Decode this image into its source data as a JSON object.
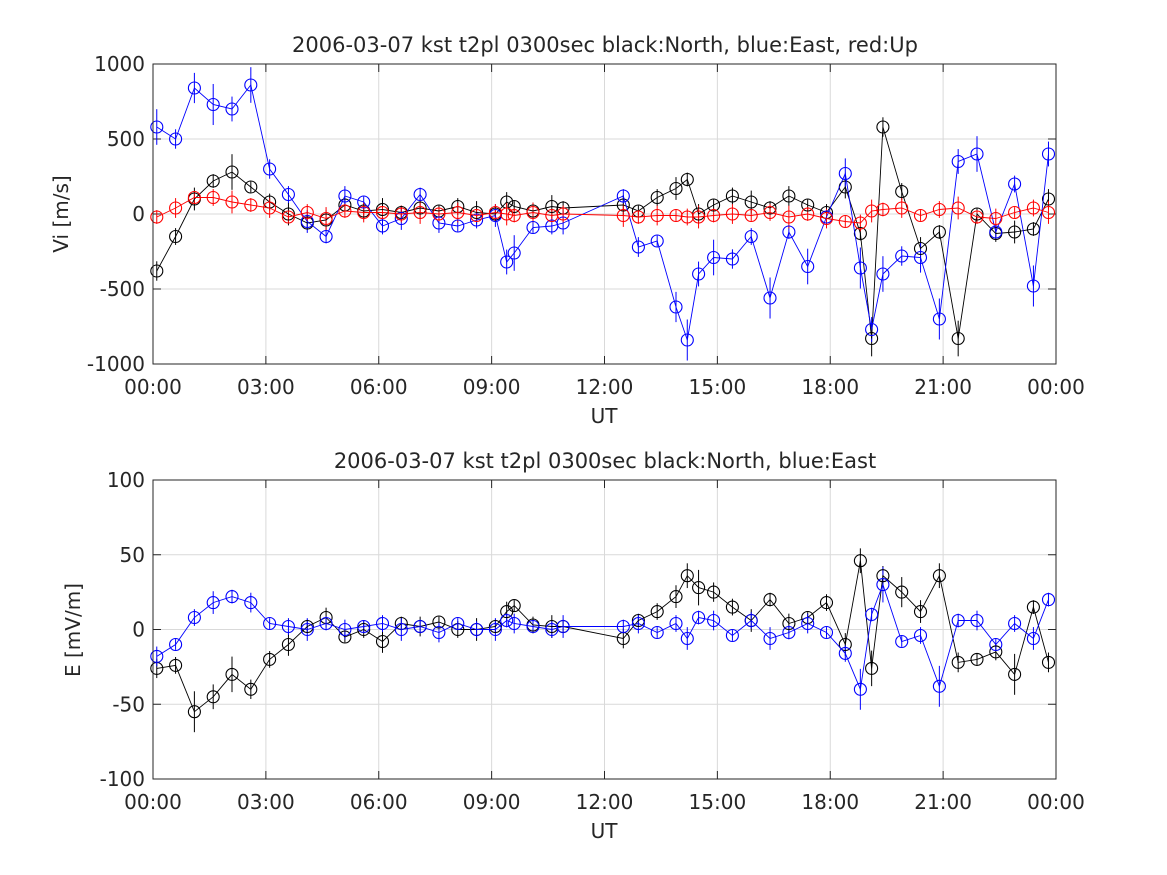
{
  "chart_data": [
    {
      "type": "scatter",
      "title": "2006-03-07 kst t2pl 0300sec black:North, blue:East, red:Up",
      "xlabel": "UT",
      "ylabel": "Vi [m/s]",
      "xlim": [
        0,
        24
      ],
      "ylim": [
        -1000,
        1000
      ],
      "grid": true,
      "xticks": [
        "00:00",
        "03:00",
        "06:00",
        "09:00",
        "12:00",
        "15:00",
        "18:00",
        "21:00",
        "00:00"
      ],
      "yticks": [
        "-1000",
        "-500",
        "0",
        "500",
        "1000"
      ],
      "x_unit": "hours UT",
      "x": [
        0.1,
        0.6,
        1.1,
        1.6,
        2.1,
        2.6,
        3.1,
        3.6,
        4.1,
        4.6,
        5.1,
        5.6,
        6.1,
        6.6,
        7.1,
        7.6,
        8.1,
        8.6,
        9.1,
        9.4,
        9.6,
        10.1,
        10.6,
        10.9,
        12.5,
        12.9,
        13.4,
        13.9,
        14.2,
        14.5,
        14.9,
        15.4,
        15.9,
        16.4,
        16.9,
        17.4,
        17.9,
        18.4,
        18.8,
        19.1,
        19.4,
        19.9,
        20.4,
        20.9,
        21.4,
        21.9,
        22.4,
        22.9,
        23.4,
        23.8
      ],
      "series": [
        {
          "name": "North",
          "color": "#000000",
          "values": [
            -380,
            -150,
            100,
            220,
            280,
            180,
            80,
            0,
            -60,
            -40,
            60,
            20,
            30,
            10,
            40,
            20,
            50,
            10,
            0,
            80,
            50,
            20,
            50,
            40,
            60,
            20,
            110,
            170,
            230,
            0,
            60,
            120,
            80,
            40,
            120,
            60,
            10,
            180,
            -130,
            -830,
            580,
            150,
            -230,
            -120,
            -830,
            0,
            -130,
            -120,
            -100,
            100
          ]
        },
        {
          "name": "East",
          "color": "#0000ff",
          "values": [
            580,
            500,
            840,
            730,
            700,
            860,
            300,
            130,
            -50,
            -150,
            120,
            80,
            -80,
            -30,
            130,
            -60,
            -80,
            -40,
            -10,
            -320,
            -260,
            -90,
            -80,
            -60,
            120,
            -220,
            -180,
            -620,
            -840,
            -400,
            -290,
            -300,
            -150,
            -560,
            -120,
            -350,
            -20,
            270,
            -360,
            -770,
            -400,
            -280,
            -290,
            -700,
            350,
            400,
            -120,
            200,
            -480,
            400
          ]
        },
        {
          "name": "Up",
          "color": "#ff0000",
          "values": [
            -20,
            40,
            110,
            110,
            80,
            60,
            40,
            -20,
            10,
            -30,
            20,
            10,
            10,
            0,
            10,
            0,
            10,
            -10,
            10,
            0,
            -10,
            10,
            -10,
            0,
            -10,
            -20,
            -10,
            -10,
            -20,
            -20,
            -10,
            0,
            -10,
            10,
            -20,
            0,
            -30,
            -50,
            -60,
            20,
            30,
            40,
            -10,
            30,
            40,
            -20,
            -30,
            10,
            40,
            10
          ]
        }
      ]
    },
    {
      "type": "scatter",
      "title": "2006-03-07 kst t2pl 0300sec black:North, blue:East",
      "xlabel": "UT",
      "ylabel": "E [mV/m]",
      "xlim": [
        0,
        24
      ],
      "ylim": [
        -100,
        100
      ],
      "grid": true,
      "xticks": [
        "00:00",
        "03:00",
        "06:00",
        "09:00",
        "12:00",
        "15:00",
        "18:00",
        "21:00",
        "00:00"
      ],
      "yticks": [
        "-100",
        "-50",
        "0",
        "50",
        "100"
      ],
      "x_unit": "hours UT",
      "x": [
        0.1,
        0.6,
        1.1,
        1.6,
        2.1,
        2.6,
        3.1,
        3.6,
        4.1,
        4.6,
        5.1,
        5.6,
        6.1,
        6.6,
        7.1,
        7.6,
        8.1,
        8.6,
        9.1,
        9.4,
        9.6,
        10.1,
        10.6,
        10.9,
        12.5,
        12.9,
        13.4,
        13.9,
        14.2,
        14.5,
        14.9,
        15.4,
        15.9,
        16.4,
        16.9,
        17.4,
        17.9,
        18.4,
        18.8,
        19.1,
        19.4,
        19.9,
        20.4,
        20.9,
        21.4,
        21.9,
        22.4,
        22.9,
        23.4,
        23.8
      ],
      "series": [
        {
          "name": "North",
          "color": "#000000",
          "values": [
            -26,
            -24,
            -55,
            -45,
            -30,
            -40,
            -20,
            -10,
            2,
            8,
            -5,
            0,
            -8,
            4,
            2,
            5,
            0,
            0,
            2,
            12,
            16,
            3,
            2,
            2,
            -6,
            6,
            12,
            22,
            36,
            28,
            25,
            15,
            6,
            20,
            4,
            8,
            18,
            -10,
            46,
            -26,
            36,
            25,
            12,
            36,
            -22,
            -20,
            -15,
            -30,
            15,
            -22
          ]
        },
        {
          "name": "East",
          "color": "#0000ff",
          "values": [
            -18,
            -10,
            8,
            18,
            22,
            18,
            4,
            2,
            0,
            4,
            0,
            2,
            4,
            0,
            2,
            -2,
            4,
            0,
            0,
            6,
            4,
            2,
            0,
            2,
            2,
            4,
            -2,
            4,
            -6,
            8,
            6,
            -4,
            6,
            -6,
            -2,
            4,
            -2,
            -16,
            -40,
            10,
            30,
            -8,
            -4,
            -38,
            6,
            6,
            -10,
            4,
            -6,
            20
          ]
        }
      ]
    }
  ]
}
